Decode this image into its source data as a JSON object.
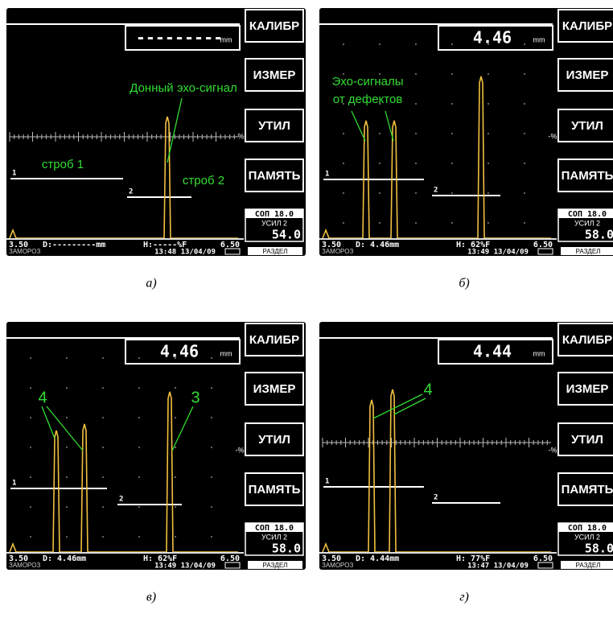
{
  "menu": [
    "КАЛИБР",
    "ИЗМЕР",
    "УТИЛ",
    "ПАМЯТЬ"
  ],
  "marker": "-%",
  "range": [
    "3.50",
    "6.50"
  ],
  "sop": "СОП 18.0",
  "usil": "УСИЛ 2",
  "status_left": "ЗАМОРОЗ",
  "status_right": "РАЗДЕЛ",
  "panels": [
    {
      "caption": "а)",
      "readout": "---------",
      "unit": "mm",
      "gain": "54.0",
      "depth": "D:---------mm",
      "amplitude": "H:-----%F",
      "time": "13:48 13/04/09",
      "gate_labels": [
        "1",
        "2"
      ],
      "annotations": [
        "Донный эхо-сигнал",
        "строб 1",
        "строб 2"
      ]
    },
    {
      "caption": "б)",
      "readout": "4.46",
      "unit": "mm",
      "gain": "58.0",
      "depth": "D: 4.46mm",
      "amplitude": "H: 62%F",
      "time": "13:49 13/04/09",
      "gate_labels": [
        "1",
        "2"
      ],
      "annotations": [
        "Эхо-сигналы",
        "от дефектов"
      ]
    },
    {
      "caption": "в)",
      "readout": "4.46",
      "unit": "mm",
      "gain": "58.0",
      "depth": "D: 4.46mm",
      "amplitude": "H: 62%F",
      "time": "13:49 13/04/09",
      "gate_labels": [
        "1",
        "2"
      ],
      "annotations": [
        "4",
        "3"
      ]
    },
    {
      "caption": "г)",
      "readout": "4.44",
      "unit": "mm",
      "gain": "58.0",
      "depth": "D: 4.44mm",
      "amplitude": "H: 77%F",
      "time": "13:47 13/04/09",
      "gate_labels": [
        "1",
        "2"
      ],
      "annotations": [
        "4"
      ]
    }
  ]
}
